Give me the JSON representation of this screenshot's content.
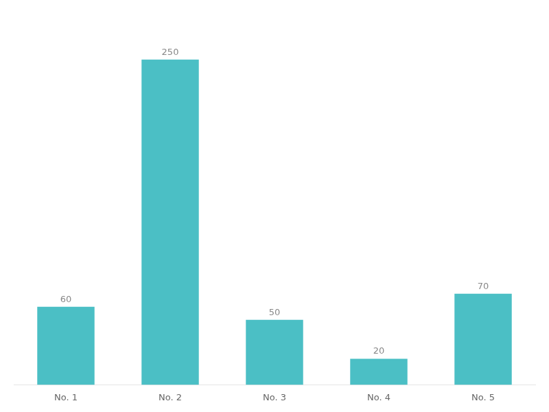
{
  "chart_data": {
    "type": "bar",
    "categories": [
      "No. 1",
      "No. 2",
      "No. 3",
      "No. 4",
      "No. 5"
    ],
    "values": [
      60,
      250,
      50,
      20,
      70
    ],
    "color": "#4BBFC5",
    "ylim": [
      0,
      280
    ],
    "grid": false,
    "data_labels": true,
    "tick_labels": "x"
  }
}
